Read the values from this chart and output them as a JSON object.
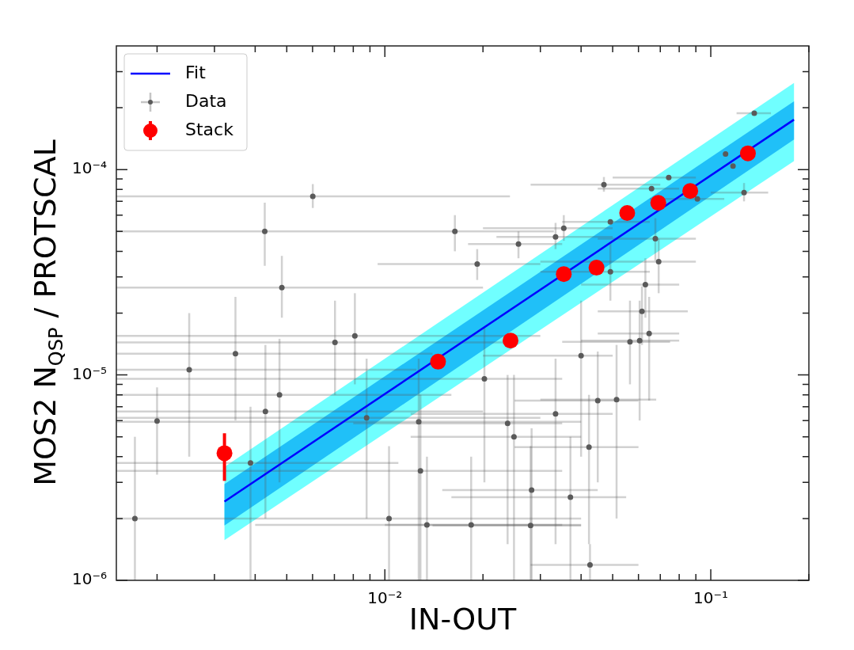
{
  "chart_data": {
    "type": "scatter",
    "xlabel": "IN-OUT",
    "ylabel": "MOS2 N$_{QSP}$ / PROTSCAL",
    "log": "xy",
    "legend": "top left",
    "xlim": [
      0.0015,
      0.2
    ],
    "ylim": [
      1e-06,
      0.0004
    ],
    "xticks": [
      {
        "value": 0.002,
        "label": null
      },
      {
        "value": 0.003,
        "label": null
      },
      {
        "value": 0.004,
        "label": null
      },
      {
        "value": 0.005,
        "label": null
      },
      {
        "value": 0.006,
        "label": null
      },
      {
        "value": 0.007,
        "label": null
      },
      {
        "value": 0.008,
        "label": null
      },
      {
        "value": 0.009,
        "label": null
      },
      {
        "value": 0.01,
        "label": "10⁻²"
      },
      {
        "value": 0.02,
        "label": null
      },
      {
        "value": 0.03,
        "label": null
      },
      {
        "value": 0.04,
        "label": null
      },
      {
        "value": 0.05,
        "label": null
      },
      {
        "value": 0.06,
        "label": null
      },
      {
        "value": 0.07,
        "label": null
      },
      {
        "value": 0.08,
        "label": null
      },
      {
        "value": 0.09,
        "label": null
      },
      {
        "value": 0.1,
        "label": "10⁻¹"
      },
      {
        "value": 0.2,
        "label": null
      }
    ],
    "yticks": [
      {
        "value": 1e-06,
        "label": "10⁻⁶"
      },
      {
        "value": 2e-06,
        "label": null
      },
      {
        "value": 3e-06,
        "label": null
      },
      {
        "value": 4e-06,
        "label": null
      },
      {
        "value": 5e-06,
        "label": null
      },
      {
        "value": 6e-06,
        "label": null
      },
      {
        "value": 7e-06,
        "label": null
      },
      {
        "value": 8e-06,
        "label": null
      },
      {
        "value": 9e-06,
        "label": null
      },
      {
        "value": 1e-05,
        "label": "10⁻⁵"
      },
      {
        "value": 2e-05,
        "label": null
      },
      {
        "value": 3e-05,
        "label": null
      },
      {
        "value": 4e-05,
        "label": null
      },
      {
        "value": 5e-05,
        "label": null
      },
      {
        "value": 6e-05,
        "label": null
      },
      {
        "value": 7e-05,
        "label": null
      },
      {
        "value": 8e-05,
        "label": null
      },
      {
        "value": 9e-05,
        "label": null
      },
      {
        "value": 0.0001,
        "label": "10⁻⁴"
      },
      {
        "value": 0.0002,
        "label": null
      },
      {
        "value": 0.0003,
        "label": null
      }
    ],
    "series": [
      {
        "type": "line",
        "color": "#70ffff",
        "x": [
          0.00322,
          0.18
        ],
        "values": [
          null,
          null
        ],
        "lower": [
          1.57e-06,
          0.00011
        ],
        "upper": [
          3.57e-06,
          0.000264
        ]
      },
      {
        "type": "line",
        "color": "#20c0f8",
        "x": [
          0.00322,
          0.18
        ],
        "values": [
          null,
          null
        ],
        "lower": [
          1.85e-06,
          0.00014
        ],
        "upper": [
          2.94e-06,
          0.000215
        ]
      },
      {
        "name": "Fit",
        "type": "line",
        "color": "#0000ff",
        "x": [
          0.00322,
          0.18
        ],
        "values": [
          2.42e-06,
          0.000175
        ]
      },
      {
        "name": "Data",
        "type": "scatter",
        "color": "#5a5a5a",
        "marker": "circle",
        "x": [
          0.00601,
          0.00428,
          0.0164,
          0.00483,
          0.002,
          0.00251,
          0.00348,
          0.0043,
          0.00475,
          0.00387,
          0.00171,
          0.0103,
          0.00809,
          0.00703,
          0.00879,
          0.0127,
          0.01286,
          0.01346,
          0.136,
          0.1265,
          0.111,
          0.117,
          0.0743,
          0.091,
          0.047,
          0.0658,
          0.0492,
          0.0354,
          0.0334,
          0.0257,
          0.0192,
          0.0676,
          0.0692,
          0.0492,
          0.063,
          0.0615,
          0.0605,
          0.0647,
          0.0565,
          0.04,
          0.0514,
          0.045,
          0.0334,
          0.0249,
          0.0423,
          0.0202,
          0.0282,
          0.0371,
          0.0184,
          0.028,
          0.0426,
          0.0238
        ],
        "values": [
          7.4e-05,
          5e-05,
          5e-05,
          2.66e-05,
          5.97e-06,
          1.06e-05,
          1.27e-05,
          6.64e-06,
          8e-06,
          3.73e-06,
          2e-06,
          2e-06,
          1.55e-05,
          1.44e-05,
          6.19e-06,
          5.91e-06,
          3.41e-06,
          1.86e-06,
          0.000188,
          7.73e-05,
          0.000119,
          0.000104,
          9.14e-05,
          7.2e-05,
          8.45e-05,
          8.07e-05,
          5.56e-05,
          5.18e-05,
          4.7e-05,
          4.34e-05,
          3.47e-05,
          4.61e-05,
          3.56e-05,
          3.18e-05,
          2.75e-05,
          2.04e-05,
          1.47e-05,
          1.59e-05,
          1.45e-05,
          1.24e-05,
          7.59e-06,
          7.5e-06,
          6.47e-06,
          5e-06,
          4.45e-06,
          9.57e-06,
          2.75e-06,
          2.54e-06,
          1.86e-06,
          1.85e-06,
          1.19e-06,
          5.81e-06
        ],
        "xerrors": [
          [
            0.0015,
            0.0242
          ],
          [
            0.0015,
            0.033
          ],
          null,
          [
            0.0015,
            0.02
          ],
          null,
          [
            0.0015,
            0.0125
          ],
          [
            0.0015,
            0.014
          ],
          [
            0.0015,
            0.02
          ],
          [
            0.0015,
            0.016
          ],
          [
            0.0015,
            0.011
          ],
          null,
          [
            0.0015,
            0.04
          ],
          [
            0.0015,
            0.03
          ],
          [
            0.0015,
            0.025
          ],
          [
            0.0015,
            0.03
          ],
          [
            0.0015,
            0.04
          ],
          [
            0.0015,
            0.035
          ],
          [
            0.004,
            0.04
          ],
          [
            0.12,
            0.153
          ],
          [
            0.1,
            0.15
          ],
          null,
          null,
          [
            0.05,
            0.09
          ],
          [
            0.065,
            0.11
          ],
          [
            0.028,
            0.07
          ],
          [
            0.045,
            0.08
          ],
          [
            0.035,
            0.065
          ],
          [
            0.02,
            0.05
          ],
          [
            0.022,
            0.05
          ],
          [
            0.018,
            0.035
          ],
          [
            0.0095,
            0.03
          ],
          [
            0.045,
            0.09
          ],
          [
            0.03,
            0.09
          ],
          [
            0.03,
            0.065
          ],
          [
            0.04,
            0.08
          ],
          [
            0.045,
            0.085
          ],
          [
            0.04,
            0.08
          ],
          [
            0.045,
            0.08
          ],
          [
            0.035,
            0.075
          ],
          [
            0.02,
            0.05
          ],
          [
            0.03,
            0.068
          ],
          [
            0.025,
            0.06
          ],
          [
            0.012,
            0.05
          ],
          [
            0.012,
            0.04
          ],
          [
            0.025,
            0.06
          ],
          [
            0.0015,
            0.035
          ],
          [
            0.015,
            0.045
          ],
          [
            0.016,
            0.055
          ],
          [
            0.01,
            0.035
          ],
          [
            0.014,
            0.04
          ],
          [
            0.028,
            0.06
          ],
          [
            0.008,
            0.035
          ]
        ],
        "errors": [
          [
            6.5e-05,
            8.5e-05
          ],
          [
            3.4e-05,
            6.9e-05
          ],
          [
            4e-05,
            6e-05
          ],
          [
            1.9e-05,
            3.8e-05
          ],
          [
            3.27e-06,
            8.7e-06
          ],
          [
            4e-06,
            2e-05
          ],
          [
            6e-06,
            2.4e-05
          ],
          [
            2e-06,
            1.4e-05
          ],
          [
            3e-06,
            1.5e-05
          ],
          [
            1e-06,
            7e-06
          ],
          [
            1e-06,
            5e-06
          ],
          [
            1e-06,
            4.5e-06
          ],
          [
            9e-06,
            2.5e-05
          ],
          [
            8e-06,
            2.3e-05
          ],
          [
            2e-06,
            1.2e-05
          ],
          [
            1e-06,
            1.2e-05
          ],
          [
            1e-06,
            8e-06
          ],
          [
            1e-06,
            4e-06
          ],
          null,
          [
            7e-05,
            8.6e-05
          ],
          null,
          null,
          null,
          null,
          [
            7.8e-05,
            9.2e-05
          ],
          null,
          null,
          [
            4.5e-05,
            6e-05
          ],
          [
            4.1e-05,
            5.5e-05
          ],
          [
            3.7e-05,
            5e-05
          ],
          [
            2.9e-05,
            4.1e-05
          ],
          [
            3.6e-05,
            5.8e-05
          ],
          [
            2.5e-05,
            4.6e-05
          ],
          [
            2.3e-05,
            4.4e-05
          ],
          [
            1.9e-05,
            3.7e-05
          ],
          [
            1.4e-05,
            2.7e-05
          ],
          [
            6e-06,
            2.3e-05
          ],
          [
            7.5e-06,
            2.4e-05
          ],
          [
            9e-06,
            2.3e-05
          ],
          [
            4e-06,
            2.3e-05
          ],
          [
            2e-06,
            1.4e-05
          ],
          [
            3e-06,
            1.3e-05
          ],
          [
            1.5e-06,
            1.2e-05
          ],
          [
            1e-06,
            1e-05
          ],
          [
            1.5e-06,
            8e-06
          ],
          [
            3e-06,
            1.7e-05
          ],
          [
            1e-06,
            5.5e-06
          ],
          [
            1e-06,
            5e-06
          ],
          [
            1e-06,
            4e-06
          ],
          [
            1e-06,
            4.5e-06
          ],
          [
            1e-06,
            1.5e-06
          ],
          [
            1.5e-06,
            1e-05
          ]
        ]
      },
      {
        "name": "Stack",
        "type": "scatter",
        "color": "#ff0000",
        "marker": "circle",
        "x": [
          0.00322,
          0.01456,
          0.0243,
          0.0354,
          0.0446,
          0.0554,
          0.069,
          0.0865,
          0.13
        ],
        "values": [
          4.16e-06,
          1.16e-05,
          1.47e-05,
          3.1e-05,
          3.33e-05,
          6.15e-05,
          6.89e-05,
          7.87e-05,
          0.00012
        ],
        "errors": [
          [
            3.05e-06,
            5.2e-06
          ],
          null,
          null,
          null,
          null,
          null,
          null,
          null,
          null
        ]
      }
    ]
  }
}
